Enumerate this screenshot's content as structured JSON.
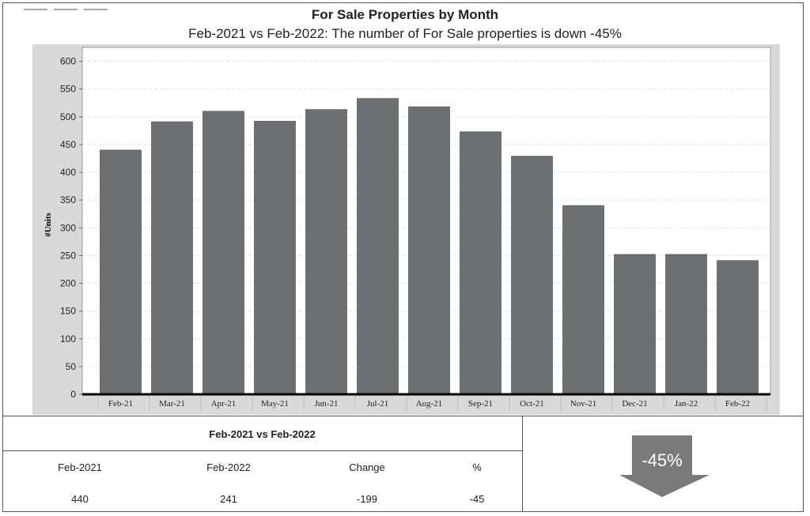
{
  "chart_data": {
    "type": "bar",
    "title": "For Sale Properties by Month",
    "subtitle": "Feb-2021 vs Feb-2022: The number of For Sale properties is down -45%",
    "ylabel": "#Units",
    "xlabel": "",
    "categories": [
      "Feb-21",
      "Mar-21",
      "Apr-21",
      "May-21",
      "Jun-21",
      "Jul-21",
      "Aug-21",
      "Sep-21",
      "Oct-21",
      "Nov-21",
      "Dec-21",
      "Jan-22",
      "Feb-22"
    ],
    "values": [
      440,
      491,
      510,
      492,
      513,
      533,
      518,
      473,
      429,
      340,
      252,
      252,
      241
    ],
    "ylim": [
      0,
      625
    ],
    "yticks": [
      0,
      50,
      100,
      150,
      200,
      250,
      300,
      350,
      400,
      450,
      500,
      550,
      600
    ],
    "grid": true,
    "colors": {
      "bar": "#6d6f72",
      "plot_bg": "#ffffff",
      "outer_bg": "#d9d9d9"
    }
  },
  "comparison": {
    "title": "Feb-2021 vs Feb-2022",
    "headers": [
      "Feb-2021",
      "Feb-2022",
      "Change",
      "%"
    ],
    "values": [
      "440",
      "241",
      "-199",
      "-45"
    ]
  },
  "indicator": {
    "text": "-45%",
    "icon": "down-arrow-icon",
    "color": "#7a7a7a"
  }
}
